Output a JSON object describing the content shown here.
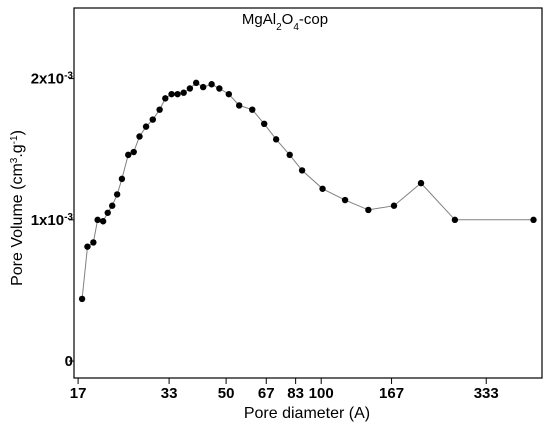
{
  "chart_data": {
    "type": "line",
    "title_main": "MgAl",
    "title_sub1": "2",
    "title_mid": "O",
    "title_sub2": "4",
    "title_tail": "-cop",
    "xlabel": "Pore diameter (A)",
    "ylabel_main": "Pore Volume (cm",
    "ylabel_sup1": "3",
    "ylabel_mid": ".g",
    "ylabel_sup2": "-1",
    "ylabel_tail": ")",
    "xscale": "log",
    "xlim": [
      16.5,
      500
    ],
    "ylim": [
      -0.00012,
      0.0025
    ],
    "x_ticks": [
      {
        "value": 17,
        "label": "17"
      },
      {
        "value": 33,
        "label": "33"
      },
      {
        "value": 50,
        "label": "50"
      },
      {
        "value": 67,
        "label": "67"
      },
      {
        "value": 83,
        "label": "83"
      },
      {
        "value": 100,
        "label": "100"
      },
      {
        "value": 167,
        "label": "167"
      },
      {
        "value": 333,
        "label": "333"
      }
    ],
    "y_ticks": [
      {
        "value": 0,
        "base": "0",
        "exp": ""
      },
      {
        "value": 0.001,
        "base": "1x10",
        "exp": "-3"
      },
      {
        "value": 0.002,
        "base": "2x10",
        "exp": "-3"
      }
    ],
    "grid": false,
    "line_color": "#808080",
    "marker_color": "#000000",
    "series": [
      {
        "x": [
          17.5,
          18.2,
          19.0,
          19.6,
          20.4,
          21.1,
          21.8,
          22.6,
          23.4,
          24.5,
          25.5,
          26.6,
          27.9,
          29.3,
          30.8,
          32.1,
          33.6,
          35.1,
          36.7,
          38.4,
          40.2,
          42.3,
          45.0,
          47.6,
          51.0,
          55.0,
          60.5,
          66.0,
          72.0,
          79.5,
          87.0,
          101.0,
          119.0,
          141.0,
          170.0,
          207.0,
          265.0,
          470.0
        ],
        "y": [
          0.00044,
          0.00081,
          0.00084,
          0.001,
          0.00099,
          0.00105,
          0.0011,
          0.00118,
          0.00129,
          0.00146,
          0.00148,
          0.00159,
          0.00166,
          0.00171,
          0.00178,
          0.00186,
          0.00189,
          0.00189,
          0.0019,
          0.00193,
          0.00197,
          0.00194,
          0.00196,
          0.00193,
          0.00189,
          0.00181,
          0.00178,
          0.00168,
          0.00157,
          0.00146,
          0.00135,
          0.00122,
          0.00114,
          0.00107,
          0.0011,
          0.00126,
          0.001,
          0.001
        ]
      }
    ]
  }
}
